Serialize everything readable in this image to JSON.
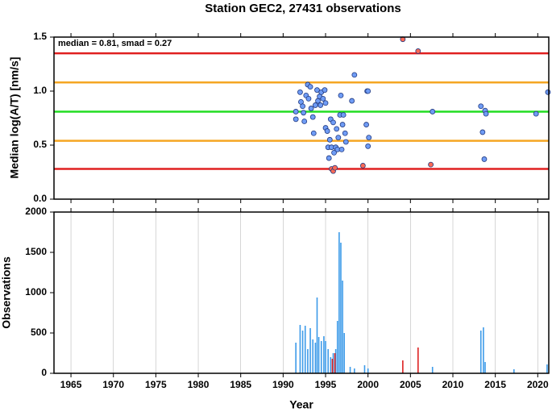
{
  "chart_data": [
    {
      "type": "scatter",
      "title": "Station GEC2, 27431 observations",
      "ylabel": "Median log(A/T) [nm/s]",
      "annotation": "median = 0.81, smad = 0.27",
      "xlim": [
        1963,
        2021.3
      ],
      "xticks": [
        1965,
        1970,
        1975,
        1980,
        1985,
        1990,
        1995,
        2000,
        2005,
        2010,
        2015,
        2020
      ],
      "ylim": [
        0,
        1.5
      ],
      "yticks": [
        {
          "value": 0,
          "label": "0.0"
        },
        0.5,
        {
          "value": 1,
          "label": "1.0"
        },
        1.5
      ],
      "hlines": [
        {
          "value": 1.35,
          "color": "#e02020"
        },
        {
          "value": 1.08,
          "color": "#f5a623"
        },
        {
          "value": 0.81,
          "color": "#22dd22"
        },
        {
          "value": 0.54,
          "color": "#f5a623"
        },
        {
          "value": 0.28,
          "color": "#e02020"
        }
      ],
      "series": [
        {
          "color": "#6f9cf5",
          "x": [
            1991.5,
            1991.5,
            1992.0,
            1992.1,
            1992.3,
            1992.4,
            1992.5,
            1992.7,
            1992.9,
            1993.0,
            1993.2,
            1993.3,
            1993.5,
            1993.6,
            1993.8,
            1994.0,
            1994.1,
            1994.3,
            1994.4,
            1994.5,
            1994.7,
            1994.9,
            1995.0,
            1995.0,
            1995.2,
            1995.3,
            1995.4,
            1995.5,
            1995.6,
            1995.7,
            1995.9,
            1996.0,
            1996.2,
            1996.3,
            1996.4,
            1996.5,
            1996.7,
            1996.8,
            1996.9,
            1997.0,
            1997.1,
            1997.3,
            1997.4,
            1998.1,
            1998.4,
            1999.8,
            1999.9,
            2000.0,
            2000.0,
            2000.1,
            2007.6,
            2013.3,
            2013.5,
            2013.7,
            2013.8,
            2013.9,
            2019.8,
            2021.2
          ],
          "values": [
            0.81,
            0.74,
            0.99,
            0.9,
            0.86,
            0.8,
            0.72,
            0.96,
            1.06,
            0.93,
            1.04,
            0.84,
            0.76,
            0.61,
            0.87,
            1.01,
            0.91,
            0.95,
            0.87,
            0.99,
            0.93,
            1.01,
            0.89,
            0.66,
            0.63,
            0.48,
            0.38,
            0.55,
            0.74,
            0.48,
            0.71,
            0.43,
            0.48,
            0.65,
            0.46,
            0.57,
            0.78,
            0.96,
            0.46,
            0.69,
            0.78,
            0.61,
            0.53,
            0.91,
            1.15,
            0.69,
            1.0,
            1.0,
            0.49,
            0.57,
            0.81,
            0.86,
            0.62,
            0.37,
            0.82,
            0.79,
            0.79,
            0.99
          ]
        },
        {
          "color": "#ff6a55",
          "x": [
            1995.7,
            1995.9,
            1996.1,
            1999.4,
            2004.1,
            2005.9,
            2007.4
          ],
          "values": [
            0.28,
            0.26,
            0.29,
            0.31,
            1.48,
            1.37,
            0.32
          ]
        }
      ]
    },
    {
      "type": "bar",
      "xlabel": "Year",
      "ylabel": "Observations",
      "xlim": [
        1963,
        2021.3
      ],
      "xticks": [
        1965,
        1970,
        1975,
        1980,
        1985,
        1990,
        1995,
        2000,
        2005,
        2010,
        2015,
        2020
      ],
      "ylim": [
        0,
        2000
      ],
      "yticks": [
        0,
        500,
        1000,
        1500,
        2000
      ],
      "grid": true,
      "series": [
        {
          "color": "#3d9be9",
          "x": [
            1991.5,
            1992.0,
            1992.3,
            1992.6,
            1992.9,
            1993.2,
            1993.5,
            1993.8,
            1994.0,
            1994.2,
            1994.5,
            1994.8,
            1995.0,
            1995.3,
            1995.6,
            1995.9,
            1996.2,
            1996.4,
            1996.6,
            1996.8,
            1997.0,
            1997.2,
            1997.9,
            1998.4,
            1999.6,
            2000.0,
            2007.6,
            2013.3,
            2013.6,
            2013.8,
            2017.2,
            2021.1
          ],
          "values": [
            380,
            600,
            530,
            590,
            300,
            560,
            420,
            380,
            940,
            450,
            400,
            460,
            400,
            300,
            200,
            250,
            300,
            650,
            1750,
            1620,
            1150,
            500,
            80,
            60,
            100,
            60,
            80,
            530,
            570,
            140,
            50,
            110
          ]
        },
        {
          "color": "#dd2222",
          "x": [
            1995.8,
            1996.1,
            2004.1,
            2005.9
          ],
          "values": [
            180,
            250,
            160,
            320
          ]
        }
      ]
    }
  ]
}
